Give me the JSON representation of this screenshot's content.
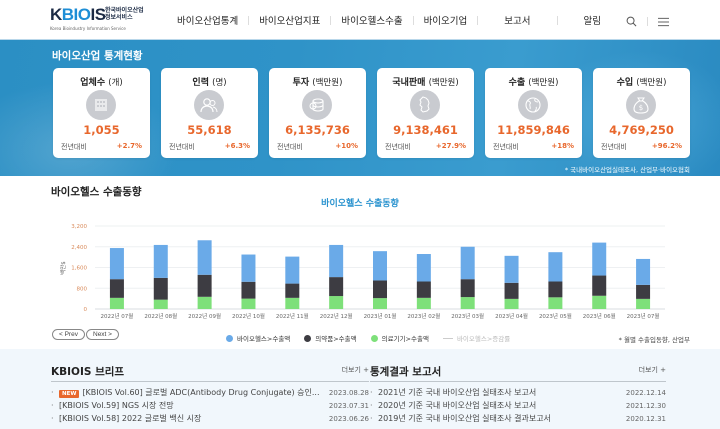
{
  "header": {
    "logo_main": "KBIOIS",
    "logo_ko_line1": "한국바이오산업",
    "logo_ko_line2": "정보서비스",
    "logo_en": "Korea Bioindustry Information Service",
    "nav": [
      {
        "label": "바이오산업통계"
      },
      {
        "label": "바이오산업지표"
      },
      {
        "label": "바이오헬스수출"
      },
      {
        "label": "바이오기업"
      },
      {
        "label": "보고서"
      },
      {
        "label": "알림"
      }
    ],
    "icons": [
      "search-icon",
      "menu-icon"
    ]
  },
  "stats": {
    "title": "바이오산업 통계현황",
    "cards": [
      {
        "title": "업체수",
        "unit": "(개)",
        "icon": "building-icon",
        "value": "1,055",
        "compare_label": "전년대비",
        "rate": "+2.7%"
      },
      {
        "title": "인력",
        "unit": "(명)",
        "icon": "people-icon",
        "value": "55,618",
        "compare_label": "전년대비",
        "rate": "+6.3%"
      },
      {
        "title": "투자",
        "unit": "(백만원)",
        "icon": "coins-icon",
        "value": "6,135,736",
        "compare_label": "전년대비",
        "rate": "+10%"
      },
      {
        "title": "국내판매",
        "unit": "(백만원)",
        "icon": "korea-map-icon",
        "value": "9,138,461",
        "compare_label": "전년대비",
        "rate": "+27.9%"
      },
      {
        "title": "수출",
        "unit": "(백만원)",
        "icon": "globe-icon",
        "value": "11,859,846",
        "compare_label": "전년대비",
        "rate": "+18%"
      },
      {
        "title": "수입",
        "unit": "(백만원)",
        "icon": "money-bag-icon",
        "value": "4,769,250",
        "compare_label": "전년대비",
        "rate": "+96.2%"
      }
    ],
    "source": "* 국내바이오산업실태조사, 산업부·바이오협회"
  },
  "export_section": {
    "title": "바이오헬스 수출동향",
    "prev_label": "< Prev",
    "next_label": "Next >",
    "source": "* 월별 수출입동향, 산업부"
  },
  "chart_data": {
    "type": "bar",
    "stacked": true,
    "title": "바이오헬스 수출동향",
    "xlabel": "",
    "ylabel": "백만$",
    "ylim": [
      0,
      3200
    ],
    "yticks": [
      "0",
      "800",
      "1,600",
      "2,400",
      "3,200"
    ],
    "grid": true,
    "legend_position": "bottom",
    "categories": [
      "2022년 07월",
      "2022년 08월",
      "2022년 09월",
      "2022년 10월",
      "2022년 11월",
      "2022년 12월",
      "2023년 01월",
      "2023년 02월",
      "2023년 03월",
      "2023년 04월",
      "2023년 05월",
      "2023년 06월",
      "2023년 07월"
    ],
    "series": [
      {
        "name": "의료기기>수출액",
        "color": "#7ee07a",
        "values": [
          430,
          360,
          470,
          400,
          430,
          500,
          420,
          430,
          460,
          390,
          450,
          510,
          390
        ]
      },
      {
        "name": "의약품>수출액",
        "color": "#3d3c42",
        "values": [
          720,
          840,
          850,
          650,
          550,
          730,
          680,
          630,
          690,
          620,
          610,
          780,
          540
        ]
      },
      {
        "name": "바이오헬스>수출액",
        "color": "#6aaae8",
        "values": [
          1200,
          1270,
          1330,
          1050,
          1040,
          1240,
          1130,
          1060,
          1250,
          1040,
          1130,
          1270,
          1000
        ]
      }
    ],
    "legend": [
      {
        "name": "바이오헬스>수출액",
        "color": "#6aaae8",
        "marker": "dot"
      },
      {
        "name": "의약품>수출액",
        "color": "#3d3c42",
        "marker": "dot"
      },
      {
        "name": "의료기기>수출액",
        "color": "#7ee07a",
        "marker": "dot"
      },
      {
        "name": "바이오헬스>증감률",
        "color": "#cccccc",
        "marker": "line",
        "disabled": true
      }
    ]
  },
  "brief": {
    "title": "KBIOIS 브리프",
    "more_label": "더보기 +",
    "new_badge": "NEW",
    "items": [
      {
        "title": "[KBIOIS Vol.60] 글로벌 ADC(Antibody Drug Conjugate) 승인...",
        "date": "2023.08.28",
        "is_new": true
      },
      {
        "title": "[KBIOIS Vol.59] NGS 시장 전망",
        "date": "2023.07.31",
        "is_new": false
      },
      {
        "title": "[KBIOIS Vol.58] 2022 글로벌 백신 시장",
        "date": "2023.06.26",
        "is_new": false
      }
    ]
  },
  "reports": {
    "title": "통계결과 보고서",
    "more_label": "더보기 +",
    "items": [
      {
        "title": "2021년 기준 국내 바이오산업 실태조사 보고서",
        "date": "2022.12.14"
      },
      {
        "title": "2020년 기준 국내 바이오산업 실태조사 보고서",
        "date": "2021.12.30"
      },
      {
        "title": "2019년 기준 국내 바이오산업 실태조사 결과보고서",
        "date": "2020.12.31"
      }
    ]
  },
  "colors": {
    "accent_orange": "#e8672c",
    "hero_blue": "#2f93c8",
    "chart_title_blue": "#2a93cf"
  }
}
